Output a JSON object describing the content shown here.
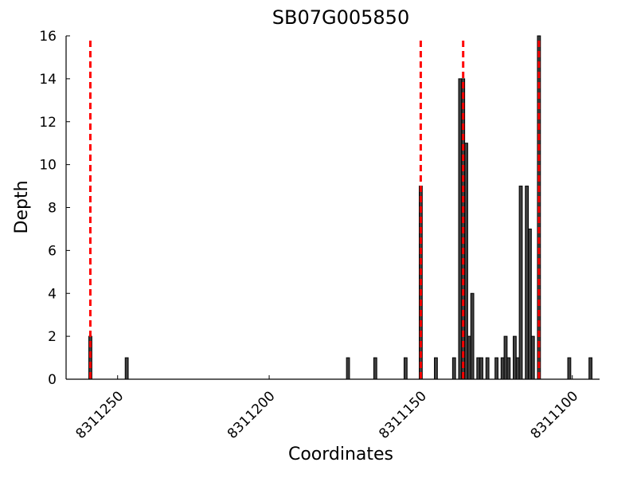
{
  "chart_data": {
    "type": "bar",
    "title": "SB07G005850",
    "x_label": "Coordinates",
    "y_label": "Depth",
    "x": [
      8311259,
      8311247,
      8311174,
      8311165,
      8311155,
      8311150,
      8311145,
      8311139,
      8311137,
      8311136,
      8311135,
      8311134,
      8311133,
      8311131,
      8311130,
      8311128,
      8311125,
      8311123,
      8311122,
      8311121,
      8311119,
      8311118,
      8311117,
      8311115,
      8311114,
      8311113,
      8311111,
      8311101,
      8311094
    ],
    "values": [
      2,
      1,
      1,
      1,
      1,
      9,
      1,
      1,
      14,
      14,
      11,
      2,
      4,
      1,
      1,
      1,
      1,
      1,
      2,
      1,
      2,
      1,
      9,
      9,
      7,
      2,
      16,
      1,
      1
    ],
    "color": "#404040",
    "vlines": [
      8311259,
      8311150,
      8311136,
      8311111
    ],
    "vline_color": "#ff0000",
    "xlim": [
      8311267,
      8311091
    ],
    "xticks": [
      8311250,
      8311200,
      8311150,
      8311100
    ],
    "ylim": [
      0,
      16
    ],
    "yticks": [
      0,
      2,
      4,
      6,
      8,
      10,
      12,
      14,
      16
    ]
  }
}
